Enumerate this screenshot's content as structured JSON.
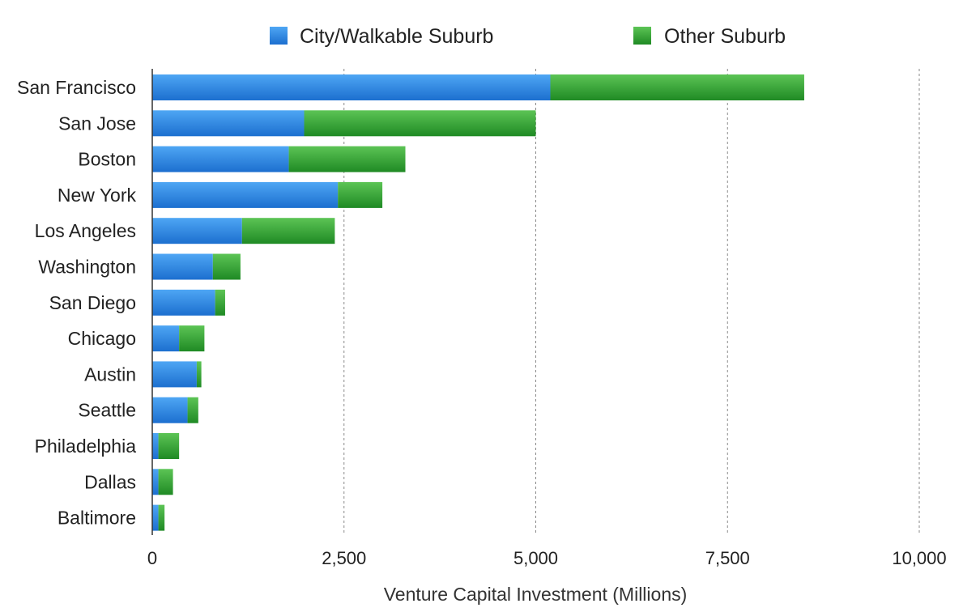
{
  "chart_data": {
    "type": "bar",
    "orientation": "horizontal",
    "stacked": true,
    "title": "",
    "xlabel": "Venture Capital Investment (Millions)",
    "ylabel": "",
    "xlim": [
      0,
      10000
    ],
    "xticks": [
      0,
      2500,
      5000,
      7500,
      10000
    ],
    "xtick_labels": [
      "0",
      "2,500",
      "5,000",
      "7,500",
      "10,000"
    ],
    "grid": "vertical dashed lines",
    "legend_position": "top",
    "categories": [
      "San Francisco",
      "San Jose",
      "Boston",
      "New York",
      "Los Angeles",
      "Washington",
      "San Diego",
      "Chicago",
      "Austin",
      "Seattle",
      "Philadelphia",
      "Dallas",
      "Baltimore"
    ],
    "series": [
      {
        "name": "City/Walkable Suburb",
        "color": "#2f86e0",
        "values": [
          5190,
          1980,
          1780,
          2420,
          1170,
          790,
          820,
          350,
          580,
          460,
          80,
          80,
          80
        ]
      },
      {
        "name": "Other Suburb",
        "color": "#3aa63a",
        "values": [
          3310,
          3020,
          1520,
          580,
          1210,
          360,
          130,
          330,
          60,
          140,
          270,
          190,
          80
        ]
      }
    ]
  }
}
